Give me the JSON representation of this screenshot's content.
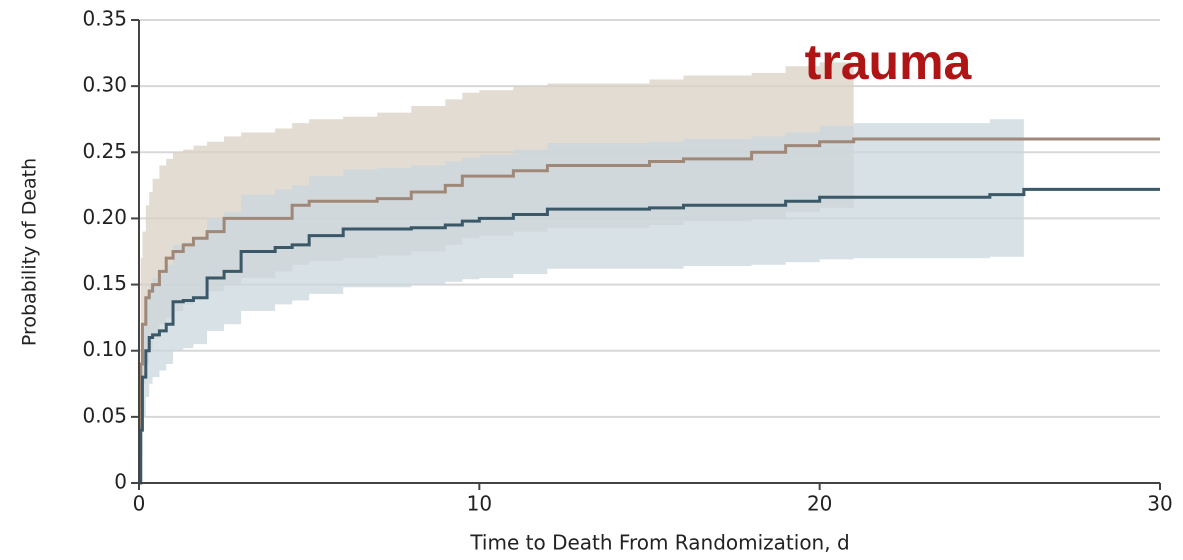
{
  "chart_data": {
    "type": "step",
    "x_label": "Time to Death From Randomization, d",
    "y_label": "Probability of Death",
    "annotation": "trauma",
    "xlim": [
      0,
      30
    ],
    "xticks": [
      0,
      10,
      20,
      30
    ],
    "ylim": [
      0,
      0.35
    ],
    "yticks": [
      0,
      0.05,
      {
        "value": 0.1,
        "label": "0.10"
      },
      0.15,
      {
        "value": 0.2,
        "label": "0.20"
      },
      0.25,
      {
        "value": 0.3,
        "label": "0.30"
      },
      0.35
    ],
    "grid": true,
    "x": [
      0,
      0.05,
      0.1,
      0.2,
      0.3,
      0.4,
      0.6,
      0.8,
      1,
      1.3,
      1.6,
      2,
      2.5,
      3,
      4,
      4.5,
      5,
      6,
      7,
      8,
      9,
      9.5,
      10,
      11,
      12,
      15,
      16,
      18,
      19,
      20,
      21,
      25,
      26,
      30
    ],
    "series": [
      {
        "color": "#a08878",
        "band_color": "#d8d0c4",
        "values": [
          0,
          0.09,
          0.12,
          0.14,
          0.145,
          0.15,
          0.16,
          0.17,
          0.175,
          0.18,
          0.185,
          0.19,
          0.2,
          0.2,
          0.2,
          0.21,
          0.213,
          0.213,
          0.215,
          0.22,
          0.225,
          0.232,
          0.232,
          0.236,
          0.24,
          0.243,
          0.245,
          0.25,
          0.255,
          0.258,
          0.26,
          0.26,
          0.26,
          0.26
        ],
        "upper": [
          null,
          0.17,
          0.19,
          0.21,
          0.22,
          0.23,
          0.24,
          0.245,
          0.25,
          0.252,
          0.255,
          0.258,
          0.262,
          0.265,
          0.268,
          0.272,
          0.275,
          0.277,
          0.28,
          0.285,
          0.29,
          0.295,
          0.297,
          0.3,
          0.302,
          0.305,
          0.308,
          0.31,
          0.315,
          0.318,
          0.32,
          null,
          null,
          null
        ],
        "lower": [
          null,
          0.05,
          0.075,
          0.09,
          0.1,
          0.11,
          0.12,
          0.125,
          0.13,
          0.135,
          0.14,
          0.145,
          0.15,
          0.155,
          0.16,
          0.165,
          0.168,
          0.17,
          0.172,
          0.175,
          0.18,
          0.185,
          0.187,
          0.19,
          0.193,
          0.195,
          0.198,
          0.2,
          0.205,
          0.208,
          0.21,
          null,
          null,
          null
        ]
      },
      {
        "color": "#3a5868",
        "band_color": "#c9d7de",
        "values": [
          0,
          0.04,
          0.08,
          0.1,
          0.11,
          0.112,
          0.115,
          0.12,
          0.137,
          0.138,
          0.14,
          0.155,
          0.16,
          0.175,
          0.178,
          0.18,
          0.187,
          0.192,
          0.192,
          0.193,
          0.195,
          0.198,
          0.2,
          0.203,
          0.207,
          0.208,
          0.21,
          0.21,
          0.213,
          0.216,
          0.216,
          0.218,
          0.222,
          0.222
        ],
        "upper": [
          null,
          0.09,
          0.12,
          0.14,
          0.15,
          0.155,
          0.16,
          0.165,
          0.18,
          0.182,
          0.185,
          0.2,
          0.205,
          0.218,
          0.222,
          0.225,
          0.232,
          0.237,
          0.238,
          0.24,
          0.243,
          0.246,
          0.248,
          0.252,
          0.257,
          0.258,
          0.26,
          0.262,
          0.265,
          0.27,
          0.272,
          0.275,
          0.278,
          null
        ],
        "lower": [
          null,
          0.02,
          0.05,
          0.065,
          0.075,
          0.08,
          0.085,
          0.09,
          0.1,
          0.102,
          0.105,
          0.115,
          0.12,
          0.13,
          0.135,
          0.138,
          0.143,
          0.148,
          0.148,
          0.15,
          0.152,
          0.154,
          0.155,
          0.158,
          0.162,
          0.162,
          0.164,
          0.165,
          0.167,
          0.169,
          0.17,
          0.171,
          0.173,
          null
        ]
      }
    ]
  }
}
